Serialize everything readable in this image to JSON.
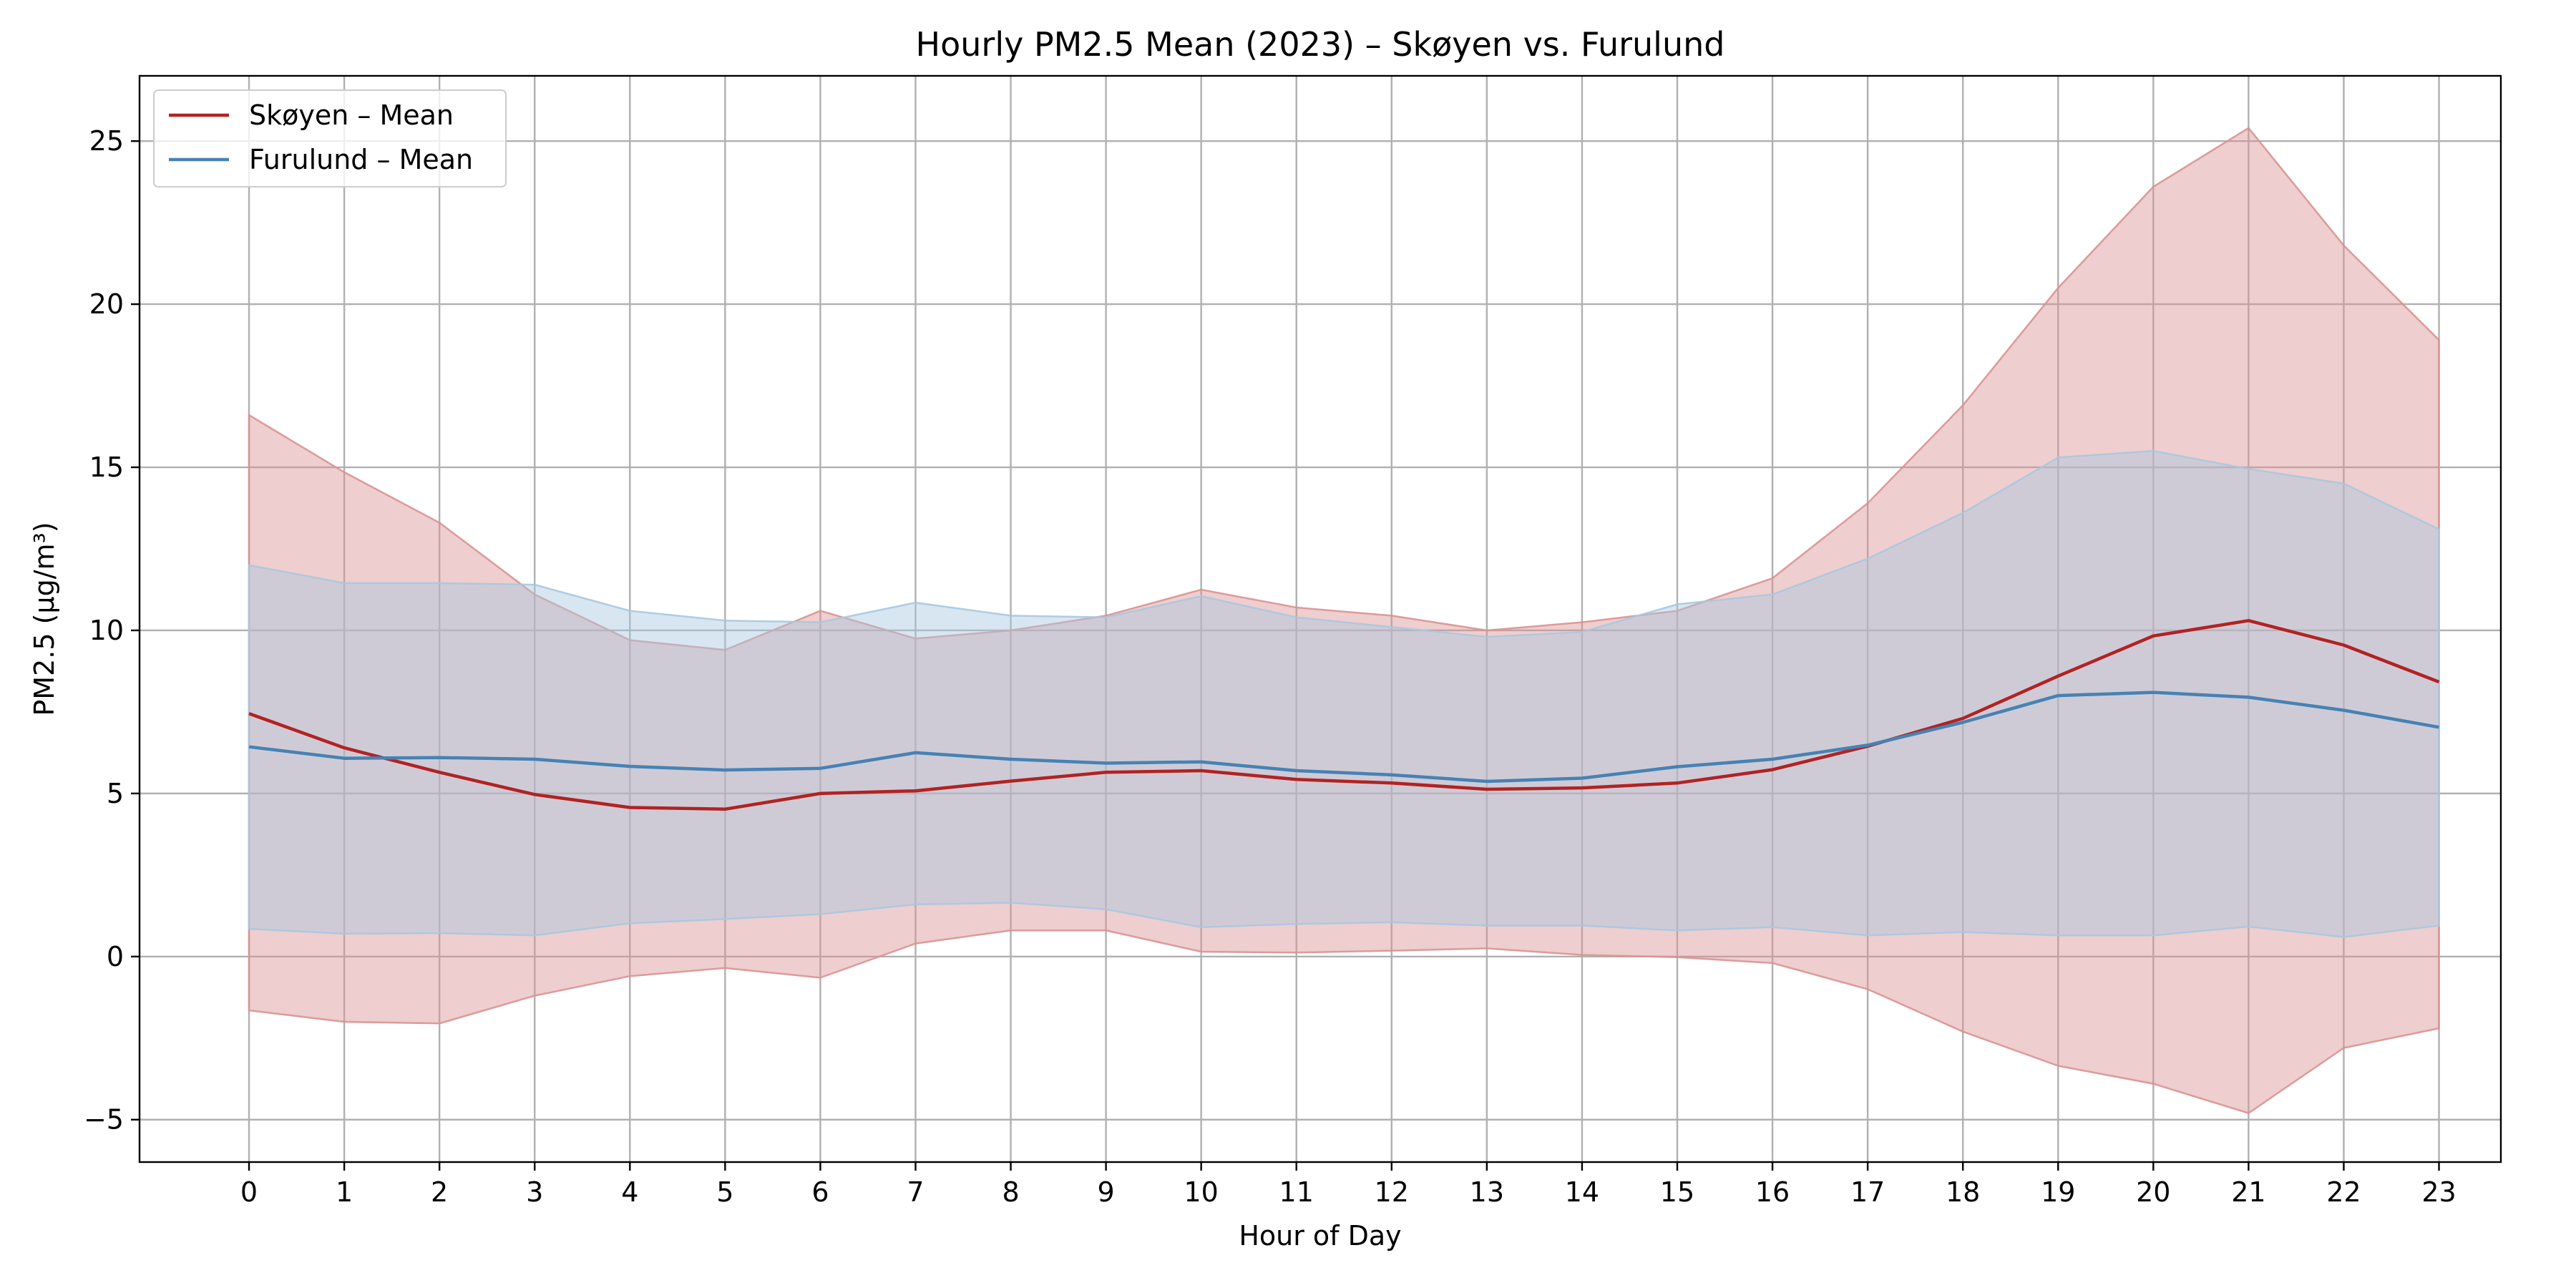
{
  "chart_data": {
    "type": "line",
    "title": "Hourly PM2.5 Mean (2023) – Skøyen vs. Furulund",
    "xlabel": "Hour of Day",
    "ylabel": "PM2.5 (µg/m³)",
    "x": [
      0,
      1,
      2,
      3,
      4,
      5,
      6,
      7,
      8,
      9,
      10,
      11,
      12,
      13,
      14,
      15,
      16,
      17,
      18,
      19,
      20,
      21,
      22,
      23
    ],
    "xticks": [
      "0",
      "1",
      "2",
      "3",
      "4",
      "5",
      "6",
      "7",
      "8",
      "9",
      "10",
      "11",
      "12",
      "13",
      "14",
      "15",
      "16",
      "17",
      "18",
      "19",
      "20",
      "21",
      "22",
      "23"
    ],
    "xlim": [
      -1.15,
      23.65
    ],
    "ylim": [
      -6.3,
      27.0
    ],
    "yticks": [
      -5,
      0,
      5,
      10,
      15,
      20,
      25
    ],
    "ytick_labels": [
      "−5",
      "0",
      "5",
      "10",
      "15",
      "20",
      "25"
    ],
    "grid": true,
    "legend_position": "top-left",
    "series": [
      {
        "name": "Skøyen – Mean",
        "color": "#b22222",
        "band_color": "#d99292",
        "mean": [
          7.45,
          6.4,
          5.65,
          4.97,
          4.57,
          4.52,
          5.0,
          5.08,
          5.38,
          5.65,
          5.7,
          5.43,
          5.32,
          5.13,
          5.17,
          5.32,
          5.73,
          6.45,
          7.3,
          8.6,
          9.83,
          10.3,
          9.55,
          8.42
        ],
        "upper": [
          16.6,
          14.85,
          13.3,
          11.1,
          9.7,
          9.4,
          10.6,
          9.75,
          10.0,
          10.45,
          11.25,
          10.7,
          10.45,
          10.0,
          10.25,
          10.6,
          11.6,
          13.9,
          16.9,
          20.5,
          23.6,
          25.4,
          21.8,
          18.9
        ],
        "lower": [
          -1.65,
          -2.0,
          -2.05,
          -1.2,
          -0.6,
          -0.35,
          -0.65,
          0.4,
          0.8,
          0.8,
          0.15,
          0.12,
          0.18,
          0.25,
          0.05,
          -0.02,
          -0.2,
          -1.0,
          -2.3,
          -3.35,
          -3.9,
          -4.8,
          -2.8,
          -2.2
        ]
      },
      {
        "name": "Furulund – Mean",
        "color": "#4682b4",
        "band_color": "#a9c8e0",
        "mean": [
          6.43,
          6.08,
          6.1,
          6.05,
          5.83,
          5.72,
          5.77,
          6.25,
          6.05,
          5.93,
          5.97,
          5.7,
          5.57,
          5.37,
          5.47,
          5.82,
          6.05,
          6.48,
          7.18,
          8.0,
          8.1,
          7.95,
          7.55,
          7.03
        ],
        "upper": [
          12.0,
          11.45,
          11.45,
          11.4,
          10.6,
          10.3,
          10.25,
          10.85,
          10.45,
          10.4,
          11.05,
          10.4,
          10.1,
          9.8,
          9.95,
          10.8,
          11.1,
          12.2,
          13.6,
          15.3,
          15.5,
          14.95,
          14.5,
          13.1
        ],
        "lower": [
          0.85,
          0.7,
          0.72,
          0.65,
          1.02,
          1.15,
          1.3,
          1.6,
          1.65,
          1.45,
          0.9,
          1.0,
          1.05,
          0.95,
          0.95,
          0.8,
          0.9,
          0.65,
          0.75,
          0.65,
          0.65,
          0.92,
          0.6,
          0.95
        ]
      }
    ]
  }
}
